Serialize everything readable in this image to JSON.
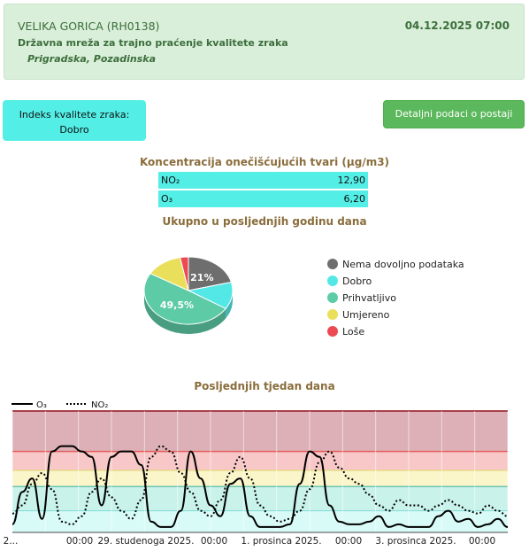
{
  "header": {
    "station_name": "VELIKA GORICA (RH0138)",
    "network": "Državna mreža za trajno praćenje kvalitete zraka",
    "location": "Prigradska, Pozadinska",
    "timestamp": "04.12.2025 07:00"
  },
  "aqi": {
    "label": "Indeks kvalitete zraka:",
    "value": "Dobro"
  },
  "details_button": "Detaljni podaci o postaji",
  "concentrations": {
    "title": "Koncentracija onečišćujućih tvari (µg/m3)",
    "rows": [
      {
        "pollutant": "NO₂",
        "value": "12,90"
      },
      {
        "pollutant": "O₃",
        "value": "6,20"
      }
    ]
  },
  "year_title": "Ukupno u posljednjih godinu dana",
  "week_title": "Posljednjih tjedan dana",
  "colors": {
    "nema": "#6e6e6e",
    "dobro": "#53e8e6",
    "prihvatljivo": "#5ecba7",
    "umjereno": "#eadf5a",
    "lose": "#ec4a52"
  },
  "chart_data": [
    {
      "type": "pie",
      "title": "Ukupno u posljednjih godinu dana",
      "legend_position": "right",
      "labels": [
        "Nema dovoljno podataka",
        "Dobro",
        "Prihvatljivo",
        "Umjereno",
        "Loše"
      ],
      "values": [
        21,
        13,
        49.5,
        13.5,
        3
      ],
      "colors": [
        "#6e6e6e",
        "#53e8e6",
        "#5ecba7",
        "#eadf5a",
        "#ec4a52"
      ],
      "data_labels": [
        "21%",
        "",
        "49,5%",
        "",
        ""
      ]
    },
    {
      "type": "line",
      "title": "Posljednjih tjedan dana",
      "legend_position": "top-left",
      "x_tick_labels": [
        "2...",
        "00:00",
        "29. studenoga 2025.",
        "00:00",
        "1. prosinca 2025.",
        "00:00",
        "3. prosinca 2025.",
        "00:00"
      ],
      "bands": [
        "Loše",
        "Umjereno",
        "Prihvatljivo",
        "Dobro"
      ],
      "series": [
        {
          "name": "O₃",
          "style": "solid",
          "values": [
            3,
            15,
            20,
            5,
            30,
            32,
            32,
            30,
            28,
            10,
            28,
            30,
            30,
            25,
            4,
            2,
            2,
            8,
            30,
            20,
            10,
            6,
            18,
            20,
            6,
            2,
            2,
            2,
            3,
            18,
            30,
            28,
            10,
            4,
            3,
            3,
            4,
            6,
            2,
            3,
            2,
            2,
            2,
            6,
            8,
            4,
            5,
            2,
            3,
            5,
            2
          ]
        },
        {
          "name": "NO₂",
          "style": "dotted",
          "values": [
            7,
            10,
            18,
            22,
            16,
            4,
            3,
            6,
            15,
            20,
            13,
            8,
            5,
            12,
            28,
            32,
            30,
            22,
            15,
            8,
            6,
            12,
            22,
            28,
            20,
            10,
            6,
            4,
            5,
            8,
            16,
            26,
            30,
            24,
            20,
            18,
            14,
            10,
            8,
            12,
            10,
            10,
            8,
            10,
            12,
            10,
            8,
            7,
            10,
            8,
            6
          ]
        }
      ]
    }
  ]
}
